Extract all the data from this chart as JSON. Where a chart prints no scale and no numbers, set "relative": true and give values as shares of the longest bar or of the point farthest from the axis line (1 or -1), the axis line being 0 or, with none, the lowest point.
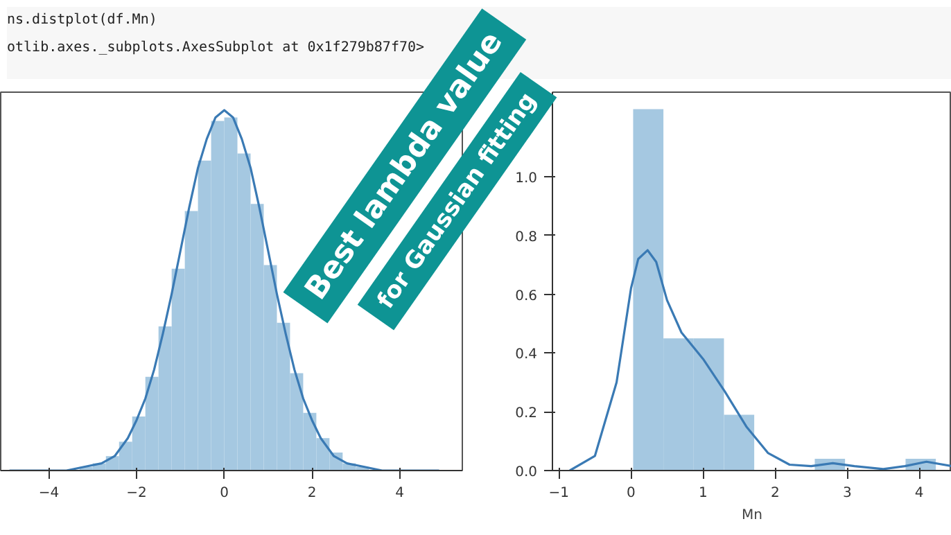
{
  "chart_data": [
    {
      "type": "histogram",
      "relative": true,
      "xlim": [
        -5.1,
        5.43
      ],
      "xticks": [
        {
          "value": -4,
          "label": "−4"
        },
        {
          "value": -2,
          "label": "−2"
        },
        0,
        2,
        4
      ],
      "tick_labels": "x",
      "annotations": [
        "ns.distplot(df.Mn)",
        "otlib.axes._subplots.AxesSubplot at 0x1f279b87f70>",
        "Best lambda value",
        "for Gaussian fitting"
      ],
      "series": [
        {
          "color": "#a5c8e1",
          "bins": [
            -3.9,
            -3.6,
            -3.3,
            -3.0,
            -2.7,
            -2.4,
            -2.1,
            -1.8,
            -1.5,
            -1.2,
            -0.9,
            -0.6,
            -0.3,
            0.0,
            0.3,
            0.6,
            0.9,
            1.2,
            1.5,
            1.8,
            2.1,
            2.4,
            2.7,
            3.0,
            3.3,
            3.6,
            3.9
          ],
          "values": [
            0.0,
            null,
            0.01,
            0.02,
            0.04,
            0.08,
            0.15,
            0.26,
            0.4,
            0.56,
            0.72,
            0.86,
            0.97,
            0.98,
            0.88,
            0.74,
            0.57,
            0.41,
            0.27,
            0.16,
            0.09,
            0.05,
            0.02,
            0.01,
            null,
            0.0
          ]
        },
        {
          "type": "line",
          "color": "#3a7ab4",
          "x": [
            -4.9,
            -4.2,
            -3.6,
            -3.2,
            -2.8,
            -2.5,
            -2.2,
            -2.0,
            -1.8,
            -1.6,
            -1.4,
            -1.2,
            -1.0,
            -0.8,
            -0.6,
            -0.4,
            -0.2,
            0.0,
            0.2,
            0.4,
            0.6,
            0.8,
            1.0,
            1.2,
            1.4,
            1.6,
            1.8,
            2.0,
            2.2,
            2.5,
            2.8,
            3.2,
            3.6,
            4.2,
            4.9
          ],
          "values": [
            0.0,
            0.0,
            0.0,
            0.01,
            0.02,
            0.04,
            0.09,
            0.14,
            0.2,
            0.28,
            0.38,
            0.49,
            0.61,
            0.73,
            0.84,
            0.92,
            0.98,
            1.0,
            0.98,
            0.92,
            0.84,
            0.73,
            0.61,
            0.49,
            0.38,
            0.28,
            0.2,
            0.14,
            0.09,
            0.04,
            0.02,
            0.01,
            0.0,
            0.0,
            0.0
          ]
        }
      ]
    },
    {
      "type": "histogram",
      "xlabel": "Mn",
      "xlim": [
        -1.09,
        4.45
      ],
      "ylim": [
        0,
        1.288
      ],
      "xticks": [
        {
          "value": -1,
          "label": "−1"
        },
        0,
        1,
        2,
        3,
        4
      ],
      "yticks": [
        {
          "value": 0,
          "label": "0.0"
        },
        0.2,
        0.4,
        0.6,
        0.8,
        {
          "value": 1,
          "label": "1.0"
        }
      ],
      "series": [
        {
          "color": "#a5c8e1",
          "bins": [
            0.03,
            0.45,
            0.87,
            1.29,
            1.71,
            2.13,
            2.55,
            2.97,
            3.39,
            3.81,
            4.23
          ],
          "values": [
            1.23,
            0.45,
            0.45,
            0.19,
            0.0,
            0.0,
            0.04,
            0.0,
            0.0,
            0.04
          ]
        },
        {
          "type": "line",
          "color": "#3a7ab4",
          "x": [
            -0.85,
            -0.5,
            -0.2,
            0.0,
            0.1,
            0.23,
            0.35,
            0.5,
            0.7,
            1.0,
            1.3,
            1.6,
            1.9,
            2.2,
            2.5,
            2.8,
            3.1,
            3.5,
            3.8,
            4.1,
            4.45
          ],
          "values": [
            0.0,
            0.05,
            0.3,
            0.62,
            0.72,
            0.75,
            0.71,
            0.58,
            0.47,
            0.38,
            0.27,
            0.15,
            0.06,
            0.02,
            0.015,
            0.025,
            0.015,
            0.005,
            0.015,
            0.03,
            0.015
          ]
        }
      ]
    }
  ]
}
